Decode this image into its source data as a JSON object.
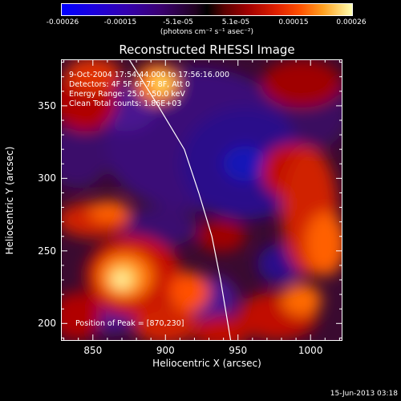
{
  "colorbar": {
    "ticks": [
      "-0.00026",
      "-0.00015",
      "-5.1e-05",
      "5.1e-05",
      "0.00015",
      "0.00026"
    ],
    "units": "(photons cm⁻² s⁻¹ asec⁻²)",
    "range": [
      -0.00026,
      0.00026
    ]
  },
  "title": "Reconstructed RHESSI Image",
  "annotations": {
    "time": "9-Oct-2004 17:54:44.000 to 17:56:16.000",
    "detectors": "Detectors: 4F 5F 6F 7F 8F, Att 0",
    "energy": "Energy Range: 25.0 - 50.0 keV",
    "clean": "Clean  Total counts: 1.86E+03",
    "peak": "Position of Peak = [870,230]"
  },
  "footer": "15-Jun-2013 03:18",
  "chart_data": {
    "type": "heatmap",
    "title": "Reconstructed RHESSI Image",
    "xlabel": "Heliocentric X (arcsec)",
    "ylabel": "Heliocentric Y (arcsec)",
    "xlim": [
      828,
      1022
    ],
    "ylim": [
      188,
      382
    ],
    "xticks": [
      "850",
      "900",
      "950",
      "1000"
    ],
    "xtick_values": [
      850,
      900,
      950,
      1000
    ],
    "yticks": [
      "200",
      "250",
      "300",
      "350"
    ],
    "ytick_values": [
      200,
      250,
      300,
      350
    ],
    "limb_line": [
      [
        875,
        382
      ],
      [
        895,
        350
      ],
      [
        913,
        320
      ],
      [
        923,
        290
      ],
      [
        932,
        260
      ],
      [
        938,
        230
      ],
      [
        943,
        200
      ],
      [
        945,
        188
      ]
    ],
    "peak": [
      870,
      230
    ]
  }
}
